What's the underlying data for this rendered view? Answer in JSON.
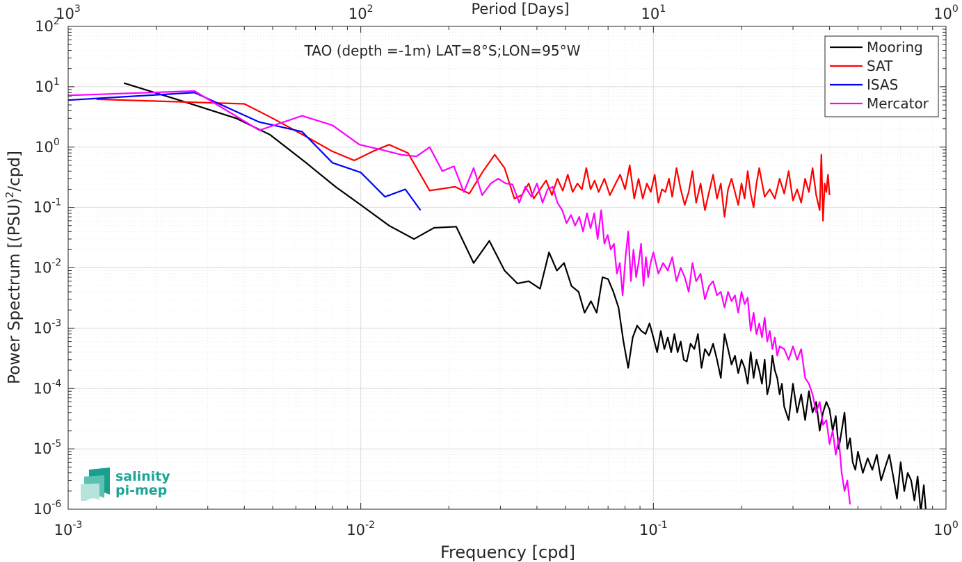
{
  "chart_data": {
    "type": "line",
    "title": "TAO (depth =-1m) LAT=8°S;LON=95°W",
    "xlabel": "Frequency [cpd]",
    "ylabel_main": "Power Spectrum [(PSU)",
    "ylabel_sup": "2",
    "ylabel_tail": "/cpd]",
    "top_xlabel": "Period [Days]",
    "xscale": "log",
    "yscale": "log",
    "xlim": [
      0.001,
      1
    ],
    "ylim": [
      1e-06,
      100
    ],
    "grid": true,
    "legend_position": "top-right",
    "x_ticks": [
      {
        "value": 0.001,
        "base": "10",
        "exp": "-3"
      },
      {
        "value": 0.01,
        "base": "10",
        "exp": "-2"
      },
      {
        "value": 0.1,
        "base": "10",
        "exp": "-1"
      },
      {
        "value": 1,
        "base": "10",
        "exp": "0"
      }
    ],
    "top_ticks": [
      {
        "value": 0.001,
        "base": "10",
        "exp": "3"
      },
      {
        "value": 0.01,
        "base": "10",
        "exp": "2"
      },
      {
        "value": 0.1,
        "base": "10",
        "exp": "1"
      },
      {
        "value": 1,
        "base": "10",
        "exp": "0"
      }
    ],
    "y_ticks": [
      {
        "value": 1e-06,
        "base": "10",
        "exp": "-6"
      },
      {
        "value": 1e-05,
        "base": "10",
        "exp": "-5"
      },
      {
        "value": 0.0001,
        "base": "10",
        "exp": "-4"
      },
      {
        "value": 0.001,
        "base": "10",
        "exp": "-3"
      },
      {
        "value": 0.01,
        "base": "10",
        "exp": "-2"
      },
      {
        "value": 0.1,
        "base": "10",
        "exp": "-1"
      },
      {
        "value": 1,
        "base": "10",
        "exp": "0"
      },
      {
        "value": 10,
        "base": "10",
        "exp": "1"
      },
      {
        "value": 100,
        "base": "10",
        "exp": "2"
      }
    ],
    "series": [
      {
        "name": "Mooring",
        "color": "#000000",
        "x": [
          0.00155,
          0.00245,
          0.00375,
          0.0049,
          0.0065,
          0.0082,
          0.01,
          0.0125,
          0.0152,
          0.0178,
          0.0212,
          0.0243,
          0.0275,
          0.031,
          0.0343,
          0.0375,
          0.041,
          0.044,
          0.0468,
          0.0495,
          0.0525,
          0.0555,
          0.0582,
          0.0612,
          0.064,
          0.067,
          0.07,
          0.073,
          0.076,
          0.079,
          0.082,
          0.085,
          0.088,
          0.091,
          0.094,
          0.097,
          0.1,
          0.103,
          0.106,
          0.109,
          0.112,
          0.115,
          0.118,
          0.121,
          0.124,
          0.127,
          0.13,
          0.134,
          0.138,
          0.142,
          0.146,
          0.15,
          0.155,
          0.16,
          0.165,
          0.17,
          0.175,
          0.18,
          0.185,
          0.19,
          0.195,
          0.2,
          0.205,
          0.21,
          0.215,
          0.22,
          0.225,
          0.23,
          0.235,
          0.24,
          0.245,
          0.25,
          0.255,
          0.26,
          0.265,
          0.27,
          0.275,
          0.28,
          0.29,
          0.3,
          0.31,
          0.32,
          0.33,
          0.34,
          0.35,
          0.36,
          0.37,
          0.38,
          0.39,
          0.4,
          0.41,
          0.42,
          0.43,
          0.44,
          0.45,
          0.46,
          0.47,
          0.48,
          0.49,
          0.5,
          0.52,
          0.54,
          0.56,
          0.58,
          0.6,
          0.62,
          0.64,
          0.66,
          0.68,
          0.7,
          0.72,
          0.74,
          0.76,
          0.78,
          0.8,
          0.82,
          0.84,
          0.86
        ],
        "y": [
          11.5,
          5.8,
          3.0,
          1.6,
          0.55,
          0.22,
          0.11,
          0.05,
          0.03,
          0.046,
          0.048,
          0.012,
          0.028,
          0.009,
          0.0055,
          0.006,
          0.0045,
          0.018,
          0.009,
          0.012,
          0.005,
          0.004,
          0.0018,
          0.0028,
          0.0018,
          0.007,
          0.0065,
          0.004,
          0.0022,
          0.0006,
          0.00022,
          0.0007,
          0.0011,
          0.0009,
          0.0008,
          0.0012,
          0.0007,
          0.0004,
          0.0009,
          0.00045,
          0.0007,
          0.0004,
          0.0008,
          0.0004,
          0.0006,
          0.0003,
          0.00028,
          0.00055,
          0.00045,
          0.0008,
          0.00022,
          0.00045,
          0.00035,
          0.00055,
          0.0003,
          0.00015,
          0.0008,
          0.00045,
          0.00025,
          0.00035,
          0.00018,
          0.0003,
          0.00022,
          0.00012,
          0.0004,
          0.00015,
          0.0003,
          0.0002,
          0.00012,
          0.0003,
          8e-05,
          0.00012,
          0.00035,
          0.0002,
          0.00015,
          8e-05,
          0.00012,
          5e-05,
          3e-05,
          0.00012,
          4e-05,
          8e-05,
          3e-05,
          9e-05,
          4e-05,
          6e-05,
          2e-05,
          4e-05,
          6e-05,
          4.5e-05,
          2e-05,
          3.5e-05,
          1e-05,
          2e-05,
          4e-05,
          1e-05,
          1.5e-05,
          6e-06,
          4.5e-06,
          9e-06,
          4e-06,
          7e-06,
          4.5e-06,
          8e-06,
          3e-06,
          5e-06,
          8e-06,
          3.5e-06,
          1.5e-06,
          6e-06,
          2e-06,
          4e-06,
          3e-06,
          1.4e-06,
          3.5e-06,
          9e-07,
          2.5e-06,
          6e-07
        ]
      },
      {
        "name": "SAT",
        "color": "#ff0000",
        "x": [
          0.00125,
          0.0025,
          0.004,
          0.005,
          0.0065,
          0.008,
          0.0095,
          0.011,
          0.0125,
          0.0145,
          0.0172,
          0.021,
          0.0235,
          0.0262,
          0.0287,
          0.031,
          0.0335,
          0.0355,
          0.0375,
          0.039,
          0.041,
          0.043,
          0.045,
          0.047,
          0.049,
          0.051,
          0.053,
          0.055,
          0.057,
          0.059,
          0.061,
          0.063,
          0.065,
          0.068,
          0.071,
          0.074,
          0.077,
          0.08,
          0.083,
          0.086,
          0.089,
          0.092,
          0.095,
          0.098,
          0.101,
          0.104,
          0.107,
          0.11,
          0.113,
          0.116,
          0.12,
          0.124,
          0.128,
          0.132,
          0.136,
          0.14,
          0.145,
          0.15,
          0.155,
          0.16,
          0.165,
          0.17,
          0.175,
          0.18,
          0.185,
          0.19,
          0.195,
          0.2,
          0.205,
          0.21,
          0.215,
          0.22,
          0.225,
          0.23,
          0.24,
          0.25,
          0.26,
          0.27,
          0.28,
          0.29,
          0.3,
          0.31,
          0.32,
          0.33,
          0.34,
          0.35,
          0.36,
          0.37,
          0.375,
          0.38,
          0.385,
          0.39,
          0.395,
          0.4
        ],
        "y": [
          6.2,
          5.6,
          5.2,
          3.0,
          1.5,
          0.85,
          0.6,
          0.85,
          1.1,
          0.8,
          0.19,
          0.22,
          0.17,
          0.4,
          0.75,
          0.45,
          0.14,
          0.16,
          0.25,
          0.14,
          0.2,
          0.28,
          0.16,
          0.3,
          0.19,
          0.35,
          0.18,
          0.25,
          0.2,
          0.45,
          0.2,
          0.28,
          0.18,
          0.3,
          0.16,
          0.24,
          0.35,
          0.2,
          0.5,
          0.14,
          0.3,
          0.14,
          0.25,
          0.18,
          0.35,
          0.12,
          0.2,
          0.18,
          0.3,
          0.15,
          0.45,
          0.2,
          0.11,
          0.18,
          0.4,
          0.12,
          0.25,
          0.09,
          0.18,
          0.35,
          0.14,
          0.25,
          0.07,
          0.2,
          0.3,
          0.18,
          0.11,
          0.25,
          0.14,
          0.4,
          0.17,
          0.1,
          0.25,
          0.45,
          0.15,
          0.2,
          0.14,
          0.3,
          0.17,
          0.4,
          0.13,
          0.2,
          0.12,
          0.3,
          0.18,
          0.45,
          0.16,
          0.09,
          0.75,
          0.06,
          0.25,
          0.18,
          0.35,
          0.16
        ]
      },
      {
        "name": "ISAS",
        "color": "#0000ff",
        "x": [
          0.001,
          0.0027,
          0.0045,
          0.0063,
          0.008,
          0.01,
          0.0121,
          0.0142,
          0.016
        ],
        "y": [
          6.0,
          8.0,
          2.6,
          1.8,
          0.55,
          0.38,
          0.15,
          0.2,
          0.09
        ]
      },
      {
        "name": "Mercator",
        "color": "#ff00ff",
        "x": [
          0.001,
          0.0027,
          0.0045,
          0.0063,
          0.008,
          0.0099,
          0.0118,
          0.0137,
          0.0155,
          0.0172,
          0.019,
          0.0208,
          0.0225,
          0.0243,
          0.026,
          0.0278,
          0.0295,
          0.0313,
          0.033,
          0.0348,
          0.0365,
          0.0383,
          0.04,
          0.0418,
          0.0435,
          0.0453,
          0.047,
          0.0488,
          0.0505,
          0.0523,
          0.054,
          0.0558,
          0.0575,
          0.0593,
          0.061,
          0.0628,
          0.0645,
          0.0663,
          0.068,
          0.0698,
          0.0715,
          0.0733,
          0.075,
          0.0768,
          0.0785,
          0.0803,
          0.082,
          0.0838,
          0.0855,
          0.0873,
          0.089,
          0.0908,
          0.0925,
          0.0943,
          0.096,
          0.0978,
          0.1,
          0.104,
          0.108,
          0.112,
          0.116,
          0.12,
          0.124,
          0.128,
          0.132,
          0.136,
          0.14,
          0.145,
          0.15,
          0.155,
          0.16,
          0.165,
          0.17,
          0.175,
          0.18,
          0.185,
          0.19,
          0.195,
          0.2,
          0.205,
          0.21,
          0.215,
          0.22,
          0.225,
          0.23,
          0.235,
          0.24,
          0.245,
          0.25,
          0.255,
          0.26,
          0.265,
          0.27,
          0.28,
          0.29,
          0.3,
          0.31,
          0.32,
          0.33,
          0.34,
          0.35,
          0.36,
          0.37,
          0.38,
          0.39,
          0.4,
          0.41,
          0.42,
          0.43,
          0.44,
          0.45,
          0.46,
          0.47
        ],
        "y": [
          7.2,
          8.5,
          1.9,
          3.3,
          2.3,
          1.1,
          0.9,
          0.75,
          0.7,
          1.0,
          0.4,
          0.48,
          0.18,
          0.45,
          0.16,
          0.25,
          0.3,
          0.25,
          0.24,
          0.12,
          0.22,
          0.15,
          0.25,
          0.12,
          0.2,
          0.22,
          0.12,
          0.09,
          0.055,
          0.075,
          0.05,
          0.07,
          0.04,
          0.08,
          0.045,
          0.08,
          0.03,
          0.09,
          0.025,
          0.035,
          0.02,
          0.025,
          0.008,
          0.012,
          0.0035,
          0.015,
          0.04,
          0.006,
          0.02,
          0.007,
          0.012,
          0.025,
          0.005,
          0.015,
          0.007,
          0.012,
          0.018,
          0.008,
          0.012,
          0.009,
          0.015,
          0.006,
          0.01,
          0.007,
          0.004,
          0.012,
          0.006,
          0.008,
          0.003,
          0.005,
          0.006,
          0.0035,
          0.004,
          0.0022,
          0.004,
          0.0028,
          0.0035,
          0.0018,
          0.004,
          0.0025,
          0.0032,
          0.0009,
          0.0018,
          0.0008,
          0.0012,
          0.0007,
          0.0015,
          0.0006,
          0.0009,
          0.00045,
          0.0007,
          0.00035,
          0.0005,
          0.00045,
          0.0003,
          0.0005,
          0.0003,
          0.00045,
          0.00015,
          0.00012,
          8e-05,
          4e-05,
          6e-05,
          2.5e-05,
          3e-05,
          1.2e-05,
          2e-05,
          8e-06,
          1.5e-05,
          4e-06,
          2e-06,
          3e-06,
          1.2e-06
        ]
      }
    ],
    "logo": {
      "line1": "salinity",
      "line2": "pi-mep",
      "color": "#1aa595"
    }
  }
}
